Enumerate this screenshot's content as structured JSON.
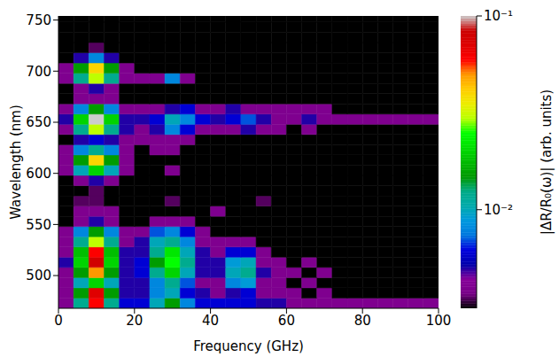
{
  "chart_data": {
    "type": "heatmap",
    "x_label": "Frequency (GHz)",
    "y_label": "Wavelength (nm)",
    "xlim": [
      0,
      100
    ],
    "xticks": [
      0,
      20,
      40,
      60,
      80,
      100
    ],
    "ylim": [
      468,
      754
    ],
    "yticks": [
      500,
      550,
      600,
      650,
      700,
      750
    ],
    "x_bins": [
      0,
      4,
      8,
      12,
      16,
      20,
      24,
      28,
      32,
      36,
      40,
      44,
      48,
      52,
      56,
      60,
      64,
      68,
      72,
      76,
      80,
      84,
      88,
      92,
      96,
      100
    ],
    "y_bins": [
      468,
      478,
      488,
      498,
      508,
      518,
      528,
      538,
      548,
      558,
      568,
      578,
      588,
      598,
      608,
      618,
      628,
      638,
      648,
      658,
      668,
      678,
      688,
      698,
      708,
      718,
      728,
      738,
      748,
      754
    ],
    "cells": [
      [
        0.004,
        0.012,
        0.06,
        0.012,
        0.006,
        0.006,
        0.01,
        0.015,
        0.008,
        0.006,
        0.006,
        0.006,
        0.006,
        0.005,
        0.005,
        0.004,
        0.004,
        0.004,
        0.004,
        0.004,
        0.004,
        0.004,
        0.004,
        0.004,
        0.004
      ],
      [
        0.004,
        0.015,
        0.07,
        0.015,
        0.005,
        0.005,
        0.008,
        0.01,
        0.006,
        0.005,
        0.004,
        0.005,
        0.006,
        0.004,
        0.004,
        0.004,
        0.003,
        0.004,
        0.003,
        0.003,
        0.003,
        0.003,
        0.003,
        0.003,
        0.003
      ],
      [
        0.004,
        0.01,
        0.02,
        0.01,
        0.005,
        0.005,
        0.008,
        0.012,
        0.007,
        0.004,
        0.004,
        0.008,
        0.009,
        0.004,
        0.004,
        0.003,
        0.004,
        0.003,
        0.003,
        0.003,
        0.003,
        0.003,
        0.003,
        0.003,
        0.003
      ],
      [
        0.004,
        0.015,
        0.05,
        0.015,
        0.005,
        0.006,
        0.012,
        0.02,
        0.01,
        0.005,
        0.005,
        0.01,
        0.012,
        0.005,
        0.004,
        0.004,
        0.003,
        0.004,
        0.003,
        0.003,
        0.003,
        0.003,
        0.003,
        0.003,
        0.003
      ],
      [
        0.005,
        0.02,
        0.08,
        0.02,
        0.005,
        0.006,
        0.015,
        0.025,
        0.012,
        0.005,
        0.005,
        0.009,
        0.01,
        0.004,
        0.004,
        0.003,
        0.004,
        0.003,
        0.003,
        0.003,
        0.003,
        0.003,
        0.003,
        0.003,
        0.003
      ],
      [
        0.004,
        0.018,
        0.06,
        0.018,
        0.005,
        0.005,
        0.012,
        0.022,
        0.01,
        0.005,
        0.004,
        0.006,
        0.006,
        0.004,
        0.003,
        0.003,
        0.003,
        0.003,
        0.003,
        0.003,
        0.003,
        0.003,
        0.003,
        0.003,
        0.003
      ],
      [
        0.004,
        0.012,
        0.03,
        0.012,
        0.004,
        0.005,
        0.01,
        0.012,
        0.008,
        0.004,
        0.004,
        0.004,
        0.004,
        0.003,
        0.003,
        0.003,
        0.003,
        0.003,
        0.003,
        0.003,
        0.003,
        0.003,
        0.003,
        0.003,
        0.003
      ],
      [
        0.004,
        0.008,
        0.015,
        0.008,
        0.004,
        0.004,
        0.007,
        0.008,
        0.006,
        0.004,
        0.003,
        0.003,
        0.003,
        0.003,
        0.003,
        0.003,
        0.003,
        0.003,
        0.003,
        0.003,
        0.003,
        0.003,
        0.003,
        0.003,
        0.003
      ],
      [
        0.003,
        0.004,
        0.005,
        0.004,
        0.003,
        0.003,
        0.004,
        0.004,
        0.004,
        0.003,
        0.003,
        0.003,
        0.003,
        0.003,
        0.003,
        0.003,
        0.003,
        0.003,
        0.003,
        0.003,
        0.003,
        0.003,
        0.003,
        0.003,
        0.003
      ],
      [
        0.003,
        0.004,
        0.004,
        0.004,
        0.003,
        0.003,
        0.003,
        0.003,
        0.003,
        0.003,
        0.004,
        0.003,
        0.003,
        0.003,
        0.003,
        0.003,
        0.003,
        0.003,
        0.003,
        0.003,
        0.003,
        0.003,
        0.003,
        0.003,
        0.003
      ],
      [
        0.003,
        0.0035,
        0.0035,
        0.003,
        0.003,
        0.003,
        0.003,
        0.0035,
        0.003,
        0.003,
        0.003,
        0.003,
        0.003,
        0.0035,
        0.003,
        0.003,
        0.003,
        0.003,
        0.003,
        0.003,
        0.003,
        0.003,
        0.003,
        0.003,
        0.003
      ],
      [
        0.003,
        0.003,
        0.0035,
        0.003,
        0.003,
        0.003,
        0.003,
        0.003,
        0.003,
        0.003,
        0.003,
        0.003,
        0.003,
        0.003,
        0.003,
        0.003,
        0.003,
        0.003,
        0.003,
        0.003,
        0.003,
        0.003,
        0.003,
        0.003,
        0.003
      ],
      [
        0.003,
        0.004,
        0.005,
        0.004,
        0.003,
        0.003,
        0.003,
        0.003,
        0.003,
        0.003,
        0.003,
        0.003,
        0.003,
        0.003,
        0.003,
        0.003,
        0.003,
        0.003,
        0.003,
        0.003,
        0.003,
        0.003,
        0.003,
        0.003,
        0.003
      ],
      [
        0.004,
        0.01,
        0.02,
        0.01,
        0.004,
        0.003,
        0.003,
        0.004,
        0.003,
        0.003,
        0.003,
        0.003,
        0.003,
        0.003,
        0.003,
        0.003,
        0.003,
        0.003,
        0.003,
        0.003,
        0.003,
        0.003,
        0.003,
        0.003,
        0.003
      ],
      [
        0.004,
        0.015,
        0.04,
        0.015,
        0.004,
        0.003,
        0.003,
        0.003,
        0.003,
        0.003,
        0.003,
        0.003,
        0.003,
        0.003,
        0.003,
        0.003,
        0.003,
        0.003,
        0.003,
        0.003,
        0.003,
        0.003,
        0.003,
        0.003,
        0.003
      ],
      [
        0.004,
        0.008,
        0.012,
        0.008,
        0.004,
        0.003,
        0.004,
        0.004,
        0.003,
        0.003,
        0.003,
        0.003,
        0.003,
        0.003,
        0.003,
        0.003,
        0.003,
        0.003,
        0.003,
        0.003,
        0.003,
        0.003,
        0.003,
        0.003,
        0.003
      ],
      [
        0.003,
        0.005,
        0.006,
        0.005,
        0.004,
        0.004,
        0.004,
        0.004,
        0.004,
        0.003,
        0.003,
        0.003,
        0.003,
        0.003,
        0.003,
        0.003,
        0.003,
        0.003,
        0.003,
        0.003,
        0.003,
        0.003,
        0.003,
        0.003,
        0.003
      ],
      [
        0.004,
        0.012,
        0.03,
        0.012,
        0.005,
        0.004,
        0.005,
        0.008,
        0.006,
        0.004,
        0.004,
        0.004,
        0.005,
        0.004,
        0.004,
        0.003,
        0.004,
        0.003,
        0.003,
        0.003,
        0.003,
        0.003,
        0.003,
        0.003,
        0.003
      ],
      [
        0.005,
        0.02,
        0.1,
        0.02,
        0.005,
        0.005,
        0.006,
        0.01,
        0.008,
        0.006,
        0.005,
        0.006,
        0.007,
        0.005,
        0.004,
        0.004,
        0.005,
        0.004,
        0.004,
        0.004,
        0.004,
        0.004,
        0.004,
        0.004,
        0.004
      ],
      [
        0.004,
        0.008,
        0.015,
        0.008,
        0.004,
        0.004,
        0.004,
        0.005,
        0.006,
        0.004,
        0.004,
        0.005,
        0.004,
        0.004,
        0.004,
        0.004,
        0.004,
        0.004,
        0.003,
        0.003,
        0.003,
        0.003,
        0.003,
        0.003,
        0.003
      ],
      [
        0.003,
        0.004,
        0.004,
        0.004,
        0.003,
        0.003,
        0.003,
        0.003,
        0.003,
        0.003,
        0.003,
        0.003,
        0.003,
        0.003,
        0.003,
        0.003,
        0.003,
        0.003,
        0.003,
        0.003,
        0.003,
        0.003,
        0.003,
        0.003,
        0.003
      ],
      [
        0.003,
        0.004,
        0.005,
        0.004,
        0.003,
        0.003,
        0.003,
        0.003,
        0.003,
        0.003,
        0.003,
        0.003,
        0.003,
        0.003,
        0.003,
        0.003,
        0.003,
        0.003,
        0.003,
        0.003,
        0.003,
        0.003,
        0.003,
        0.003,
        0.003
      ],
      [
        0.004,
        0.012,
        0.03,
        0.012,
        0.004,
        0.004,
        0.004,
        0.008,
        0.004,
        0.003,
        0.003,
        0.003,
        0.003,
        0.003,
        0.003,
        0.003,
        0.003,
        0.003,
        0.003,
        0.003,
        0.003,
        0.003,
        0.003,
        0.003,
        0.003
      ],
      [
        0.004,
        0.015,
        0.04,
        0.015,
        0.004,
        0.003,
        0.003,
        0.003,
        0.003,
        0.003,
        0.003,
        0.003,
        0.003,
        0.003,
        0.003,
        0.003,
        0.003,
        0.003,
        0.003,
        0.003,
        0.003,
        0.003,
        0.003,
        0.003,
        0.003
      ],
      [
        0.003,
        0.005,
        0.008,
        0.005,
        0.003,
        0.003,
        0.003,
        0.003,
        0.003,
        0.003,
        0.003,
        0.003,
        0.003,
        0.003,
        0.003,
        0.003,
        0.003,
        0.003,
        0.003,
        0.003,
        0.003,
        0.003,
        0.003,
        0.003,
        0.003
      ],
      [
        0.003,
        0.003,
        0.0035,
        0.003,
        0.003,
        0.003,
        0.003,
        0.003,
        0.003,
        0.003,
        0.003,
        0.003,
        0.003,
        0.003,
        0.003,
        0.003,
        0.003,
        0.003,
        0.003,
        0.003,
        0.003,
        0.003,
        0.003,
        0.003,
        0.003
      ],
      [
        0.003,
        0.003,
        0.003,
        0.003,
        0.003,
        0.003,
        0.003,
        0.003,
        0.003,
        0.003,
        0.003,
        0.003,
        0.003,
        0.003,
        0.003,
        0.003,
        0.003,
        0.003,
        0.003,
        0.003,
        0.003,
        0.003,
        0.003,
        0.003,
        0.003
      ],
      [
        0.003,
        0.003,
        0.003,
        0.003,
        0.003,
        0.003,
        0.003,
        0.003,
        0.003,
        0.003,
        0.003,
        0.003,
        0.003,
        0.003,
        0.003,
        0.003,
        0.003,
        0.003,
        0.003,
        0.003,
        0.003,
        0.003,
        0.003,
        0.003,
        0.003
      ],
      [
        0.003,
        0.003,
        0.003,
        0.003,
        0.003,
        0.003,
        0.003,
        0.003,
        0.003,
        0.003,
        0.003,
        0.003,
        0.003,
        0.003,
        0.003,
        0.003,
        0.003,
        0.003,
        0.003,
        0.003,
        0.003,
        0.003,
        0.003,
        0.003,
        0.003
      ]
    ],
    "colorbar": {
      "label": "|ΔR/R₀(ω)| (arb. units)",
      "range": [
        0.0031,
        0.1
      ],
      "log": true,
      "ticks": [
        {
          "value": 0.1,
          "label": "10⁻¹"
        },
        {
          "value": 0.01,
          "label": "10⁻²"
        }
      ]
    }
  }
}
